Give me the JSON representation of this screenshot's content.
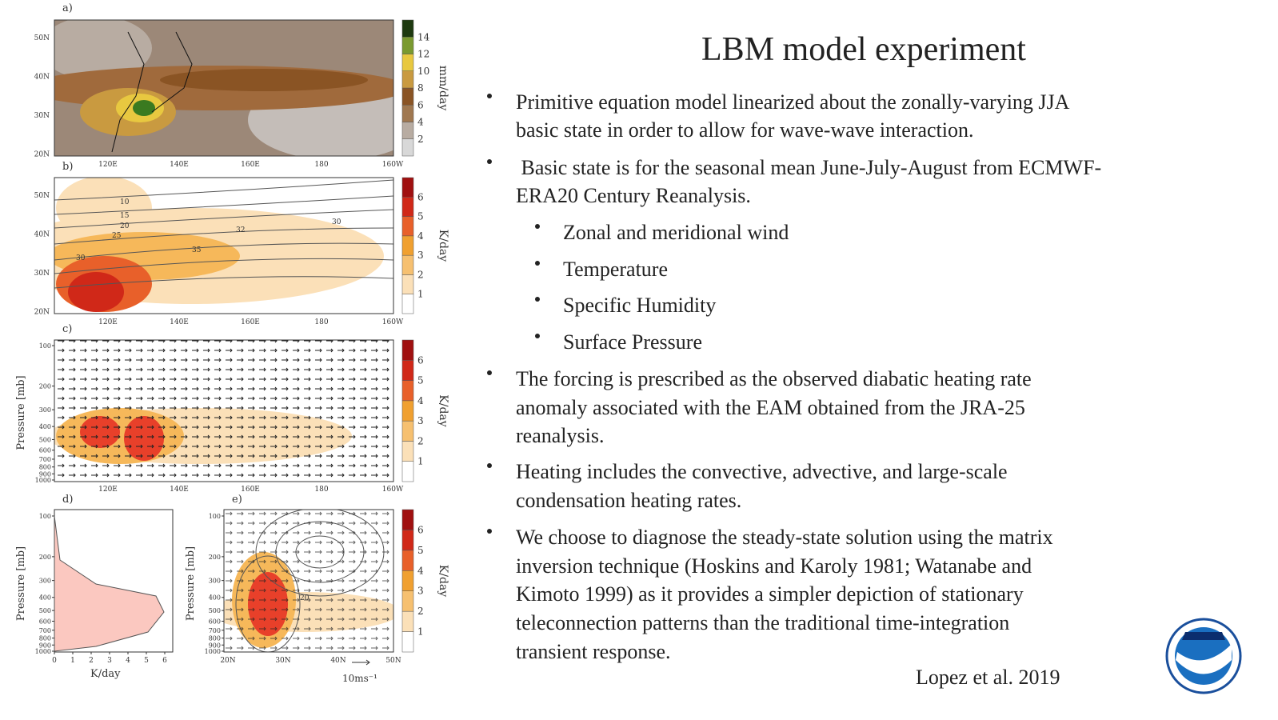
{
  "slide": {
    "title": "LBM model experiment",
    "items": [
      {
        "level": 1,
        "lines": [
          "Primitive equation model linearized about the zonally-varying JJA",
          "basic state in order to allow for wave-wave interaction."
        ]
      },
      {
        "level": 1,
        "lines": [
          " Basic state is for the seasonal mean June-July-August from ECMWF-",
          "ERA20 Century Reanalysis."
        ]
      },
      {
        "level": 2,
        "lines": [
          "Zonal and meridional wind"
        ]
      },
      {
        "level": 2,
        "lines": [
          "Temperature"
        ]
      },
      {
        "level": 2,
        "lines": [
          "Specific Humidity"
        ]
      },
      {
        "level": 2,
        "lines": [
          "Surface Pressure"
        ]
      },
      {
        "level": 1,
        "lines": [
          "The forcing is prescribed as the observed diabatic heating rate",
          "anomaly associated with the EAM obtained from the JRA-25",
          "reanalysis."
        ]
      },
      {
        "level": 1,
        "lines": [
          "Heating includes the convective, advective, and large-scale",
          "condensation heating rates."
        ]
      },
      {
        "level": 1,
        "lines": [
          "We choose to diagnose the steady-state solution using the matrix",
          "inversion technique (Hoskins and Karoly 1981; Watanabe and",
          "Kimoto 1999) as it provides a simpler depiction of stationary",
          "teleconnection patterns than the traditional time-integration",
          "transient response."
        ]
      }
    ],
    "citation": "Lopez et al. 2019"
  },
  "figure": {
    "lat_ticks": [
      "50N",
      "40N",
      "30N",
      "20N"
    ],
    "lon_ticks": [
      "120E",
      "140E",
      "160E",
      "180",
      "160W"
    ],
    "pressure_ticks": [
      100,
      200,
      300,
      400,
      500,
      600,
      700,
      800,
      900,
      1000
    ],
    "pressure_label": "Pressure [mb]",
    "panels": [
      {
        "label": "a)",
        "colorbar_ticks": [
          2,
          4,
          6,
          8,
          10,
          12,
          14
        ],
        "unit": "mm/day"
      },
      {
        "label": "b)",
        "colorbar_ticks": [
          1,
          2,
          3,
          4,
          5,
          6
        ],
        "unit": "K/day",
        "contour_labels": [
          "10",
          "15",
          "20",
          "25",
          "30",
          "32",
          "35",
          "30"
        ]
      },
      {
        "label": "c)",
        "colorbar_ticks": [
          1,
          2,
          3,
          4,
          5,
          6
        ],
        "unit": "K/day"
      },
      {
        "label": "d)",
        "x_ticks": [
          0,
          1,
          2,
          3,
          4,
          5,
          6
        ],
        "x_label": "K/day"
      },
      {
        "label": "e)",
        "colorbar_ticks": [
          1,
          2,
          3,
          4,
          5,
          6
        ],
        "unit": "K/day",
        "x_ticks": [
          "20N",
          "30N",
          "40N",
          "50N"
        ],
        "contour_labels": [
          "20"
        ],
        "vector_scale": "10ms⁻¹"
      }
    ]
  }
}
